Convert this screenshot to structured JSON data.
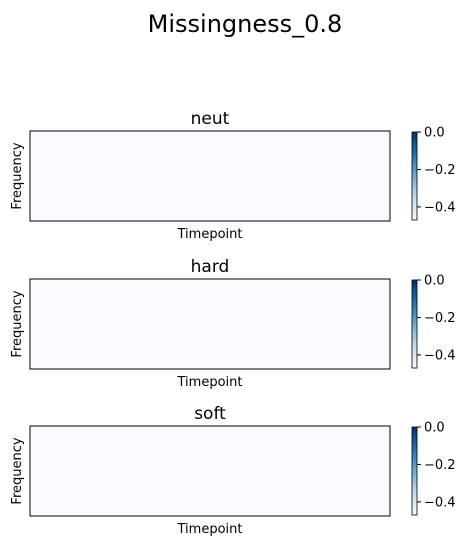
{
  "figure": {
    "title": "Missingness_0.8"
  },
  "chart_data": [
    {
      "type": "heatmap",
      "title": "neut",
      "xlabel": "Timepoint",
      "ylabel": "Frequency",
      "x_ticks": "none",
      "y_ticks": "none",
      "cell_color": "#f7fbff",
      "colormap": "Blues",
      "colorbar": {
        "min": -0.47,
        "max": 0.0,
        "ticks": [
          0.0,
          -0.2,
          -0.4
        ],
        "tick_labels": [
          "0.0",
          "−0.2",
          "−0.4"
        ]
      }
    },
    {
      "type": "heatmap",
      "title": "hard",
      "xlabel": "Timepoint",
      "ylabel": "Frequency",
      "x_ticks": "none",
      "y_ticks": "none",
      "cell_color": "#f7fbff",
      "colormap": "Blues",
      "colorbar": {
        "min": -0.47,
        "max": 0.0,
        "ticks": [
          0.0,
          -0.2,
          -0.4
        ],
        "tick_labels": [
          "0.0",
          "−0.2",
          "−0.4"
        ]
      }
    },
    {
      "type": "heatmap",
      "title": "soft",
      "xlabel": "Timepoint",
      "ylabel": "Frequency",
      "x_ticks": "none",
      "y_ticks": "none",
      "cell_color": "#f7fbff",
      "colormap": "Blues",
      "colorbar": {
        "min": -0.47,
        "max": 0.0,
        "ticks": [
          0.0,
          -0.2,
          -0.4
        ],
        "tick_labels": [
          "0.0",
          "−0.2",
          "−0.4"
        ]
      }
    }
  ]
}
